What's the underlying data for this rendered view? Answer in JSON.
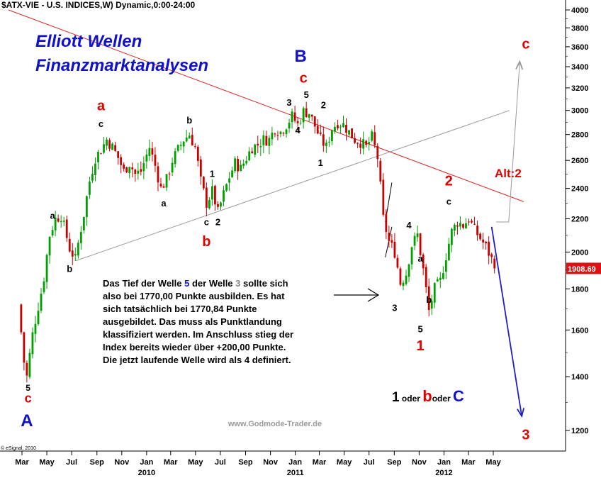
{
  "chart_data": {
    "type": "candlestick",
    "header": "$ATX-VIE - U.S. INDICES,W) Dynamic,0:00-24:00",
    "title_line1": "Elliott Wellen",
    "title_line2": "Finanzmarktanalysen",
    "watermark": "www.Godmode-Trader.de",
    "copyright": "© eSignal, 2010",
    "last_value_label": "1908.69",
    "y_scale": "log",
    "ylim": [
      1150,
      4050
    ],
    "y_ticks": [
      4000,
      3800,
      3600,
      3400,
      3200,
      3000,
      2800,
      2600,
      2400,
      2200,
      2000,
      1800,
      1600,
      1400,
      1200
    ],
    "x_months": [
      {
        "label": "Mar",
        "date": "2009-03"
      },
      {
        "label": "May",
        "date": "2009-05"
      },
      {
        "label": "Jul",
        "date": "2009-07"
      },
      {
        "label": "Sep",
        "date": "2009-09"
      },
      {
        "label": "Nov",
        "date": "2009-11"
      },
      {
        "label": "Jan",
        "date": "2010-01"
      },
      {
        "label": "Mar",
        "date": "2010-03"
      },
      {
        "label": "May",
        "date": "2010-05"
      },
      {
        "label": "Jul",
        "date": "2010-07"
      },
      {
        "label": "Sep",
        "date": "2010-09"
      },
      {
        "label": "Nov",
        "date": "2010-11"
      },
      {
        "label": "Jan",
        "date": "2011-01"
      },
      {
        "label": "Mar",
        "date": "2011-03"
      },
      {
        "label": "May",
        "date": "2011-05"
      },
      {
        "label": "Jul",
        "date": "2011-07"
      },
      {
        "label": "Sep",
        "date": "2011-09"
      },
      {
        "label": "Nov",
        "date": "2011-11"
      },
      {
        "label": "Jan",
        "date": "2012-01"
      },
      {
        "label": "Mar",
        "date": "2012-03"
      },
      {
        "label": "May",
        "date": "2012-05"
      }
    ],
    "x_years": [
      "2010",
      "2011",
      "2012"
    ],
    "price_path": [
      [
        "2009-02-20",
        1720
      ],
      [
        "2009-03-06",
        1460
      ],
      [
        "2009-03-13",
        1400
      ],
      [
        "2009-03-27",
        1580
      ],
      [
        "2009-04-17",
        1780
      ],
      [
        "2009-04-24",
        1860
      ],
      [
        "2009-05-08",
        2100
      ],
      [
        "2009-05-22",
        2200
      ],
      [
        "2009-06-05",
        2220
      ],
      [
        "2009-06-26",
        2020
      ],
      [
        "2009-07-10",
        1960
      ],
      [
        "2009-07-31",
        2230
      ],
      [
        "2009-08-14",
        2450
      ],
      [
        "2009-08-28",
        2620
      ],
      [
        "2009-09-11",
        2680
      ],
      [
        "2009-09-25",
        2760
      ],
      [
        "2009-10-09",
        2700
      ],
      [
        "2009-10-23",
        2620
      ],
      [
        "2009-11-06",
        2520
      ],
      [
        "2009-11-20",
        2580
      ],
      [
        "2009-12-04",
        2500
      ],
      [
        "2009-12-18",
        2520
      ],
      [
        "2010-01-08",
        2700
      ],
      [
        "2010-01-22",
        2560
      ],
      [
        "2010-02-05",
        2400
      ],
      [
        "2010-02-19",
        2460
      ],
      [
        "2010-03-05",
        2600
      ],
      [
        "2010-03-19",
        2680
      ],
      [
        "2010-04-02",
        2760
      ],
      [
        "2010-04-16",
        2800
      ],
      [
        "2010-04-30",
        2700
      ],
      [
        "2010-05-14",
        2450
      ],
      [
        "2010-05-28",
        2300
      ],
      [
        "2010-06-11",
        2380
      ],
      [
        "2010-06-25",
        2240
      ],
      [
        "2010-07-09",
        2360
      ],
      [
        "2010-07-23",
        2480
      ],
      [
        "2010-08-06",
        2580
      ],
      [
        "2010-08-20",
        2540
      ],
      [
        "2010-09-03",
        2620
      ],
      [
        "2010-09-17",
        2700
      ],
      [
        "2010-10-01",
        2720
      ],
      [
        "2010-10-15",
        2760
      ],
      [
        "2010-10-29",
        2760
      ],
      [
        "2010-11-12",
        2850
      ],
      [
        "2010-11-26",
        2820
      ],
      [
        "2010-12-10",
        2880
      ],
      [
        "2010-12-24",
        2950
      ],
      [
        "2011-01-07",
        2880
      ],
      [
        "2011-01-21",
        2990
      ],
      [
        "2011-02-04",
        2980
      ],
      [
        "2011-02-18",
        2870
      ],
      [
        "2011-03-04",
        2760
      ],
      [
        "2011-03-18",
        2700
      ],
      [
        "2011-04-01",
        2850
      ],
      [
        "2011-04-15",
        2900
      ],
      [
        "2011-04-29",
        2880
      ],
      [
        "2011-05-13",
        2820
      ],
      [
        "2011-05-27",
        2760
      ],
      [
        "2011-06-10",
        2740
      ],
      [
        "2011-06-24",
        2700
      ],
      [
        "2011-07-08",
        2780
      ],
      [
        "2011-07-22",
        2620
      ],
      [
        "2011-08-05",
        2200
      ],
      [
        "2011-08-19",
        2060
      ],
      [
        "2011-09-02",
        2000
      ],
      [
        "2011-09-16",
        1830
      ],
      [
        "2011-09-30",
        1880
      ],
      [
        "2011-10-14",
        2040
      ],
      [
        "2011-10-28",
        2100
      ],
      [
        "2011-11-11",
        1900
      ],
      [
        "2011-11-25",
        1690
      ],
      [
        "2011-12-09",
        1800
      ],
      [
        "2011-12-23",
        1840
      ],
      [
        "2012-01-06",
        1980
      ],
      [
        "2012-01-20",
        2120
      ],
      [
        "2012-02-03",
        2180
      ],
      [
        "2012-02-17",
        2160
      ],
      [
        "2012-03-02",
        2200
      ],
      [
        "2012-03-16",
        2130
      ],
      [
        "2012-03-30",
        2080
      ],
      [
        "2012-04-13",
        2030
      ],
      [
        "2012-04-27",
        1960
      ],
      [
        "2012-05-04",
        1908.69
      ]
    ],
    "overlay_lines": [
      {
        "name": "red-trendline",
        "color": "#dd2222",
        "points": [
          [
            "2009-01-27",
            4000
          ],
          [
            "2012-07-15",
            2310
          ]
        ]
      },
      {
        "name": "gray-channel-line",
        "color": "#999999",
        "points": [
          [
            "2009-07-10",
            1950
          ],
          [
            "2012-06-10",
            3000
          ]
        ]
      },
      {
        "name": "gray-alt-path",
        "color": "#999999",
        "points": [
          [
            "2012-05-08",
            2180
          ],
          [
            "2012-06-08",
            2180
          ],
          [
            "2012-07-05",
            3450
          ]
        ]
      },
      {
        "name": "blue-projection-arrow",
        "color": "#1e1ec8",
        "points": [
          [
            "2012-04-27",
            2150
          ],
          [
            "2012-07-10",
            1250
          ]
        ]
      },
      {
        "name": "triangle-upper",
        "color": "#000000",
        "points": [
          [
            "2011-08-10",
            2180
          ],
          [
            "2011-08-26",
            2440
          ]
        ]
      },
      {
        "name": "triangle-lower",
        "color": "#000000",
        "points": [
          [
            "2011-08-10",
            1970
          ],
          [
            "2011-08-26",
            2150
          ]
        ]
      }
    ],
    "annotations": [
      {
        "text": "c",
        "color": "#e00000",
        "size": 18,
        "date": "2009-03-16",
        "price": 1300
      },
      {
        "text": "5",
        "color": "#000000",
        "size": 12,
        "date": "2009-03-16",
        "price": 1345
      },
      {
        "text": "A",
        "color": "#1111cc",
        "size": 24,
        "date": "2009-03-13",
        "price": 1215
      },
      {
        "text": "a",
        "color": "#000000",
        "size": 13,
        "date": "2009-05-15",
        "price": 2200
      },
      {
        "text": "b",
        "color": "#000000",
        "size": 13,
        "date": "2009-06-26",
        "price": 1890
      },
      {
        "text": "c",
        "color": "#000000",
        "size": 13,
        "date": "2009-09-11",
        "price": 2860
      },
      {
        "text": "a",
        "color": "#e00000",
        "size": 20,
        "date": "2009-09-11",
        "price": 3000
      },
      {
        "text": "a",
        "color": "#000000",
        "size": 13,
        "date": "2010-02-12",
        "price": 2280
      },
      {
        "text": "b",
        "color": "#000000",
        "size": 13,
        "date": "2010-04-16",
        "price": 2890
      },
      {
        "text": "c",
        "color": "#000000",
        "size": 13,
        "date": "2010-05-28",
        "price": 2160
      },
      {
        "text": "b",
        "color": "#e00000",
        "size": 20,
        "date": "2010-05-28",
        "price": 2035
      },
      {
        "text": "1",
        "color": "#000000",
        "size": 13,
        "date": "2010-06-11",
        "price": 2480
      },
      {
        "text": "2",
        "color": "#000000",
        "size": 13,
        "date": "2010-06-25",
        "price": 2160
      },
      {
        "text": "3",
        "color": "#000000",
        "size": 13,
        "date": "2010-12-17",
        "price": 3040
      },
      {
        "text": "4",
        "color": "#000000",
        "size": 13,
        "date": "2011-01-07",
        "price": 2810
      },
      {
        "text": "5",
        "color": "#000000",
        "size": 13,
        "date": "2011-01-28",
        "price": 3110
      },
      {
        "text": "c",
        "color": "#e00000",
        "size": 20,
        "date": "2011-01-21",
        "price": 3250
      },
      {
        "text": "B",
        "color": "#1111cc",
        "size": 24,
        "date": "2011-01-14",
        "price": 3450
      },
      {
        "text": "2",
        "color": "#000000",
        "size": 13,
        "date": "2011-03-11",
        "price": 3020
      },
      {
        "text": "1",
        "color": "#000000",
        "size": 13,
        "date": "2011-03-04",
        "price": 2560
      },
      {
        "text": "4",
        "color": "#000000",
        "size": 13,
        "date": "2011-10-07",
        "price": 2140
      },
      {
        "text": "3",
        "color": "#000000",
        "size": 13,
        "date": "2011-09-02",
        "price": 1690
      },
      {
        "text": "a",
        "color": "#000000",
        "size": 13,
        "date": "2011-11-04",
        "price": 1945
      },
      {
        "text": "b",
        "color": "#000000",
        "size": 13,
        "date": "2011-11-25",
        "price": 1730
      },
      {
        "text": "5",
        "color": "#000000",
        "size": 13,
        "date": "2011-11-04",
        "price": 1590
      },
      {
        "text": "1",
        "color": "#e00000",
        "size": 20,
        "date": "2011-11-04",
        "price": 1510
      },
      {
        "text": "c",
        "color": "#000000",
        "size": 13,
        "date": "2012-01-13",
        "price": 2290
      },
      {
        "text": "2",
        "color": "#e00000",
        "size": 20,
        "date": "2012-01-13",
        "price": 2420
      },
      {
        "text": "c",
        "color": "#e00000",
        "size": 20,
        "date": "2012-07-20",
        "price": 3580
      },
      {
        "text": "3",
        "color": "#e00000",
        "size": 20,
        "date": "2012-07-20",
        "price": 1170
      }
    ],
    "alt_label": {
      "text": "Alt:2",
      "color": "#e00000"
    },
    "wave_legend": [
      {
        "text": "1",
        "color": "#000000"
      },
      {
        "text": " oder ",
        "color": "#000000"
      },
      {
        "text": "b",
        "color": "#e00000"
      },
      {
        "text": "oder ",
        "color": "#000000"
      },
      {
        "text": "C",
        "color": "#1111cc"
      }
    ],
    "comment": [
      [
        {
          "t": "Das Tief der Welle "
        },
        {
          "t": "5",
          "c": "#1111cc"
        },
        {
          "t": " der Welle "
        },
        {
          "t": "3",
          "c": "#888888"
        },
        {
          "t": " sollte sich"
        }
      ],
      [
        {
          "t": "also bei 1770,00 Punkte ausbilden. Es hat"
        }
      ],
      [
        {
          "t": "sich tatsächlich bei 1770,84 Punkte"
        }
      ],
      [
        {
          "t": "ausgebildet. Das muss als Punktlandung"
        }
      ],
      [
        {
          "t": "klassifiziert werden. Im Anschluss stieg der"
        }
      ],
      [
        {
          "t": "Index bereits wieder über +200,00 Punkte."
        }
      ],
      [
        {
          "t": "Die jetzt laufende Welle wird als 4 definiert."
        }
      ]
    ]
  }
}
